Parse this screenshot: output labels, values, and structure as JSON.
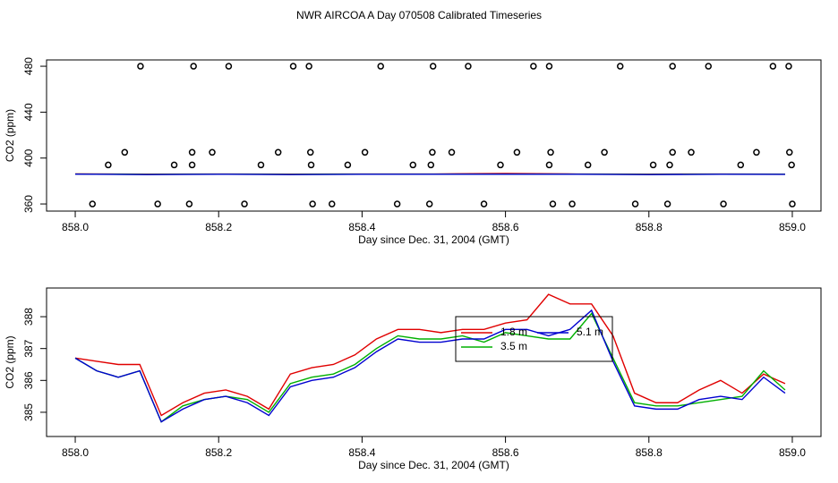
{
  "title": "NWR AIRCOA A  Day 070508  Calibrated Timeseries",
  "chart_data": [
    {
      "type": "line",
      "xlabel": "Day since Dec. 31, 2004 (GMT)",
      "ylabel": "CO2 (ppm)",
      "xlim": [
        857.96,
        859.04
      ],
      "ylim": [
        353.8,
        485.5
      ],
      "xticks": [
        {
          "value": 858,
          "label": "858.0"
        },
        858.2,
        858.4,
        858.6,
        858.8,
        {
          "value": 859,
          "label": "859.0"
        }
      ],
      "yticks": [
        360,
        400,
        440,
        480
      ],
      "x": [
        858.0,
        858.1,
        858.2,
        858.3,
        858.4,
        858.5,
        858.6,
        858.7,
        858.8,
        858.9,
        858.99
      ],
      "series": [
        {
          "color": "#e00000",
          "values": [
            386.2,
            386.0,
            386.1,
            386.0,
            386.1,
            386.1,
            386.6,
            386.1,
            386.0,
            386.1,
            386.0
          ]
        },
        {
          "color": "#00b000",
          "values": [
            386.1,
            385.8,
            386.0,
            385.8,
            386.0,
            386.0,
            386.0,
            386.0,
            385.8,
            386.0,
            385.9
          ]
        },
        {
          "color": "#0000d0",
          "values": [
            386.0,
            385.6,
            385.9,
            385.6,
            385.9,
            385.9,
            385.9,
            385.9,
            385.6,
            385.9,
            385.8
          ]
        }
      ],
      "points": {
        "x": [
          858.091,
          858.165,
          858.214,
          858.304,
          858.326,
          858.426,
          858.499,
          858.548,
          858.639,
          858.661,
          858.76,
          858.833,
          858.883,
          858.973,
          858.995,
          858.069,
          858.163,
          858.191,
          858.283,
          858.328,
          858.404,
          858.498,
          858.525,
          858.616,
          858.663,
          858.738,
          858.833,
          858.859,
          858.95,
          858.996,
          858.046,
          858.138,
          858.163,
          858.259,
          858.329,
          858.38,
          858.471,
          858.496,
          858.593,
          858.661,
          858.715,
          858.806,
          858.829,
          858.928,
          858.999,
          858.024,
          858.115,
          858.159,
          858.236,
          858.331,
          858.358,
          858.449,
          858.494,
          858.57,
          858.666,
          858.693,
          858.781,
          858.826,
          858.904,
          859.0
        ],
        "y": [
          480,
          480,
          480,
          480,
          480,
          480,
          480,
          480,
          480,
          480,
          480,
          480,
          480,
          480,
          480,
          405,
          405,
          405,
          405,
          405,
          405,
          405,
          405,
          405,
          405,
          405,
          405,
          405,
          405,
          405,
          394,
          394,
          394,
          394,
          394,
          394,
          394,
          394,
          394,
          394,
          394,
          394,
          394,
          394,
          394,
          360,
          360,
          360,
          360,
          360,
          360,
          360,
          360,
          360,
          360,
          360,
          360,
          360,
          360,
          360
        ]
      }
    },
    {
      "type": "line",
      "xlabel": "Day since Dec. 31, 2004 (GMT)",
      "ylabel": "CO2 (ppm)",
      "xlim": [
        857.96,
        859.04
      ],
      "ylim": [
        384.24,
        388.9
      ],
      "xticks": [
        {
          "value": 858,
          "label": "858.0"
        },
        858.2,
        858.4,
        858.6,
        858.8,
        {
          "value": 859,
          "label": "859.0"
        }
      ],
      "yticks": [
        385,
        386,
        387,
        388
      ],
      "legend": true,
      "x": [
        858.0,
        858.03,
        858.06,
        858.09,
        858.12,
        858.15,
        858.18,
        858.21,
        858.24,
        858.27,
        858.3,
        858.33,
        858.36,
        858.39,
        858.42,
        858.45,
        858.48,
        858.51,
        858.54,
        858.57,
        858.6,
        858.63,
        858.66,
        858.69,
        858.72,
        858.75,
        858.78,
        858.81,
        858.84,
        858.87,
        858.9,
        858.93,
        858.96,
        858.99
      ],
      "series": [
        {
          "name": "1.8 m",
          "color": "#e00000",
          "values": [
            386.7,
            386.6,
            386.5,
            386.5,
            384.9,
            385.3,
            385.6,
            385.7,
            385.5,
            385.1,
            386.2,
            386.4,
            386.5,
            386.8,
            387.3,
            387.6,
            387.6,
            387.5,
            387.6,
            387.6,
            387.8,
            387.9,
            388.7,
            388.4,
            388.4,
            387.4,
            385.6,
            385.3,
            385.3,
            385.7,
            386.0,
            385.6,
            386.2,
            385.9
          ]
        },
        {
          "name": "3.5 m",
          "color": "#00b000",
          "values": [
            386.7,
            386.3,
            386.1,
            386.3,
            384.7,
            385.2,
            385.4,
            385.5,
            385.4,
            385.0,
            385.9,
            386.1,
            386.2,
            386.5,
            387.0,
            387.4,
            387.3,
            387.3,
            387.4,
            387.2,
            387.5,
            387.4,
            387.3,
            387.3,
            388.1,
            386.7,
            385.3,
            385.2,
            385.2,
            385.3,
            385.4,
            385.5,
            386.3,
            385.7
          ]
        },
        {
          "name": "5.1 m",
          "color": "#0000d0",
          "values": [
            386.7,
            386.3,
            386.1,
            386.3,
            384.7,
            385.1,
            385.4,
            385.5,
            385.3,
            384.9,
            385.8,
            386.0,
            386.1,
            386.4,
            386.9,
            387.3,
            387.2,
            387.2,
            387.3,
            387.3,
            387.6,
            387.6,
            387.4,
            387.6,
            388.2,
            386.6,
            385.2,
            385.1,
            385.1,
            385.4,
            385.5,
            385.4,
            386.1,
            385.6
          ]
        }
      ]
    }
  ]
}
